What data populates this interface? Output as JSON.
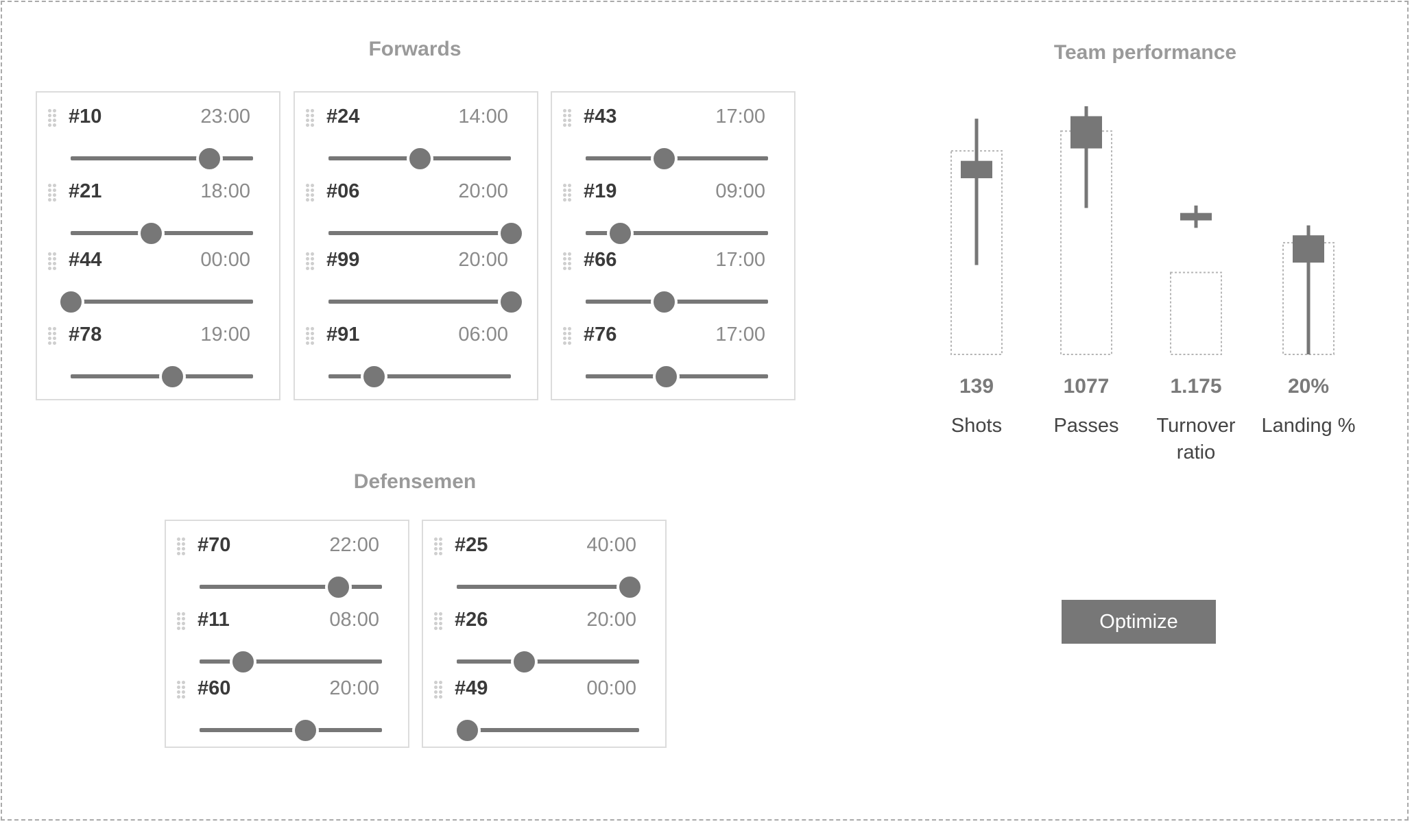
{
  "forwards": {
    "title": "Forwards",
    "lines": [
      {
        "players": [
          {
            "number": "#10",
            "time": "23:00",
            "level": 0.76
          },
          {
            "number": "#21",
            "time": "18:00",
            "level": 0.44
          },
          {
            "number": "#44",
            "time": "00:00",
            "level": 0.0
          },
          {
            "number": "#78",
            "time": "19:00",
            "level": 0.56
          }
        ]
      },
      {
        "players": [
          {
            "number": "#24",
            "time": "14:00",
            "level": 0.5
          },
          {
            "number": "#06",
            "time": "20:00",
            "level": 1.0
          },
          {
            "number": "#99",
            "time": "20:00",
            "level": 1.0
          },
          {
            "number": "#91",
            "time": "06:00",
            "level": 0.25
          }
        ]
      },
      {
        "players": [
          {
            "number": "#43",
            "time": "17:00",
            "level": 0.43
          },
          {
            "number": "#19",
            "time": "09:00",
            "level": 0.19
          },
          {
            "number": "#66",
            "time": "17:00",
            "level": 0.43
          },
          {
            "number": "#76",
            "time": "17:00",
            "level": 0.44
          }
        ]
      }
    ]
  },
  "defensemen": {
    "title": "Defensemen",
    "lines": [
      {
        "players": [
          {
            "number": "#70",
            "time": "22:00",
            "level": 0.76
          },
          {
            "number": "#11",
            "time": "08:00",
            "level": 0.24
          },
          {
            "number": "#60",
            "time": "20:00",
            "level": 0.58
          }
        ]
      },
      {
        "players": [
          {
            "number": "#25",
            "time": "40:00",
            "level": 0.95
          },
          {
            "number": "#26",
            "time": "20:00",
            "level": 0.37
          },
          {
            "number": "#49",
            "time": "00:00",
            "level": 0.06
          }
        ]
      }
    ]
  },
  "team_performance": {
    "title": "Team performance",
    "metrics": [
      {
        "name": "Shots",
        "value": "139",
        "range_low": 0.36,
        "range_high": 0.95,
        "box_low": 0.71,
        "box_high": 0.78,
        "target_top": 0.82
      },
      {
        "name": "Passes",
        "value": "1077",
        "range_low": 0.59,
        "range_high": 1.0,
        "box_low": 0.83,
        "box_high": 0.96,
        "target_top": 0.9
      },
      {
        "name": "Turnover\nratio",
        "value": "1.175",
        "range_low": 0.51,
        "range_high": 0.6,
        "box_low": 0.54,
        "box_high": 0.57,
        "target_top": 0.33
      },
      {
        "name": "Landing %",
        "value": "20%",
        "range_low": 0.0,
        "range_high": 0.52,
        "box_low": 0.37,
        "box_high": 0.48,
        "target_top": 0.45
      }
    ]
  },
  "optimize_label": "Optimize",
  "colors": {
    "primary": "#777777",
    "title": "#9a9a9a",
    "frame": "#a9a9a9"
  }
}
